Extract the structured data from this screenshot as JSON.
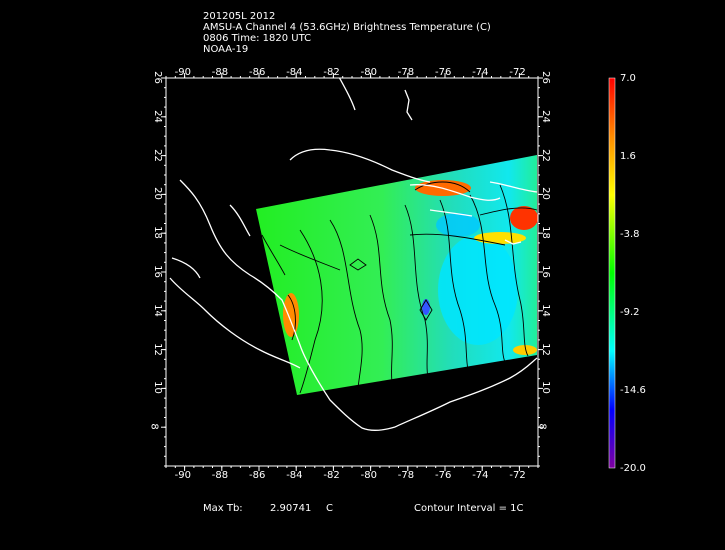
{
  "header": {
    "line1": "201205L 2012",
    "line2": "AMSU-A Channel 4 (53.6GHz) Brightness Temperature (C)",
    "line3": "0806 Time: 1820 UTC",
    "line4": "NOAA-19"
  },
  "map": {
    "lon_min": -91.0,
    "lon_max": -71.0,
    "lat_min": 6.0,
    "lat_max": 26.0,
    "lon_ticks": [
      "-90",
      "-88",
      "-86",
      "-84",
      "-82",
      "-80",
      "-78",
      "-76",
      "-74",
      "-72"
    ],
    "lat_ticks": [
      "8",
      "10",
      "12",
      "14",
      "16",
      "18",
      "20",
      "22",
      "24",
      "26"
    ],
    "colors": {
      "background": "#000000",
      "coastline": "#ffffff",
      "contour": "#000000"
    }
  },
  "colorbar": {
    "labels": [
      "7.0",
      "1.6",
      "-3.8",
      "-9.2",
      "-14.6",
      "-20.0"
    ],
    "min": -20.0,
    "max": 7.0,
    "palette": [
      "#ff0000",
      "#ff8c00",
      "#ffff00",
      "#00ff00",
      "#00ffff",
      "#0000ff",
      "#8000a0"
    ]
  },
  "footer": {
    "max_tb_label": "Max Tb:",
    "max_tb_value": "2.90741",
    "max_tb_unit": "C",
    "contour_interval": "Contour Interval = 1C"
  }
}
